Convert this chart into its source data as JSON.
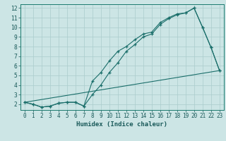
{
  "title": "",
  "xlabel": "Humidex (Indice chaleur)",
  "ylabel": "",
  "background_color": "#cce5e5",
  "grid_color": "#aacccc",
  "line_color": "#1a6e6a",
  "xlim": [
    -0.5,
    23.5
  ],
  "ylim": [
    1.4,
    12.4
  ],
  "xticks": [
    0,
    1,
    2,
    3,
    4,
    5,
    6,
    7,
    8,
    9,
    10,
    11,
    12,
    13,
    14,
    15,
    16,
    17,
    18,
    19,
    20,
    21,
    22,
    23
  ],
  "yticks": [
    2,
    3,
    4,
    5,
    6,
    7,
    8,
    9,
    10,
    11,
    12
  ],
  "line1_x": [
    0,
    1,
    2,
    3,
    4,
    5,
    6,
    7,
    8,
    9,
    10,
    11,
    12,
    13,
    14,
    15,
    16,
    17,
    18,
    19,
    20,
    21,
    22,
    23
  ],
  "line1_y": [
    2.2,
    2.0,
    1.7,
    1.8,
    2.1,
    2.2,
    2.2,
    1.8,
    4.4,
    5.3,
    6.5,
    7.5,
    8.0,
    8.7,
    9.3,
    9.5,
    10.5,
    11.0,
    11.4,
    11.5,
    12.0,
    10.0,
    7.9,
    5.5
  ],
  "line2_x": [
    0,
    1,
    2,
    3,
    4,
    5,
    6,
    7,
    8,
    9,
    10,
    11,
    12,
    13,
    14,
    15,
    16,
    17,
    18,
    19,
    20,
    21,
    22,
    23
  ],
  "line2_y": [
    2.2,
    2.0,
    1.7,
    1.8,
    2.1,
    2.2,
    2.2,
    1.8,
    3.0,
    4.0,
    5.3,
    6.3,
    7.5,
    8.2,
    9.0,
    9.3,
    10.3,
    10.9,
    11.3,
    11.5,
    12.0,
    10.0,
    7.9,
    5.5
  ],
  "line3_x": [
    0,
    23
  ],
  "line3_y": [
    2.2,
    5.5
  ],
  "xlabel_fontsize": 6.5,
  "tick_fontsize": 5.5
}
